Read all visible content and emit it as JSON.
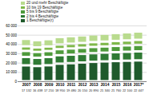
{
  "chart_data": {
    "type": "bar",
    "stacked": true,
    "categories": [
      "2007",
      "2008",
      "2009",
      "2010",
      "2011",
      "2012",
      "2013",
      "2014",
      "2015",
      "2016",
      "2017*"
    ],
    "series": [
      {
        "name": "1 Beschäftigte(r)",
        "color": "#1f5a2c",
        "values": [
          17132,
          16438,
          17210,
          18950,
          19480,
          20150,
          20890,
          21340,
          21760,
          22100,
          22447
        ],
        "value_labels": [
          "17 132",
          "16 438",
          "17 210",
          "18 950",
          "19 480",
          "20 150",
          "20 890",
          "21 340",
          "21 760",
          "22 100",
          "22 447"
        ]
      },
      {
        "name": "2 bis 4 Beschäftigte",
        "color": "#2f7a34",
        "values": [
          9000,
          8800,
          8900,
          9100,
          9200,
          9300,
          9300,
          9400,
          9500,
          9600,
          9700
        ]
      },
      {
        "name": "5 bis 9 Beschäftigte",
        "color": "#4f9b3c",
        "values": [
          6500,
          6300,
          6400,
          6500,
          6600,
          6600,
          6700,
          6700,
          6800,
          6900,
          7000
        ]
      },
      {
        "name": "10 bis 19 Beschäftigte",
        "color": "#7fb84a",
        "values": [
          5000,
          4900,
          4900,
          5000,
          5100,
          5100,
          5200,
          5200,
          5300,
          5300,
          5400
        ]
      },
      {
        "name": "20 und mehr Beschäftigte",
        "color": "#b9db8e",
        "values": [
          8000,
          7800,
          7900,
          8100,
          8200,
          8300,
          8400,
          8500,
          8600,
          8800,
          9000
        ]
      }
    ],
    "ylim": [
      0,
      60000
    ],
    "yticks": [
      0,
      {
        "value": 10000,
        "label": "10 000"
      },
      {
        "value": 20000,
        "label": "20 000"
      },
      {
        "value": 30000,
        "label": "30 000"
      },
      {
        "value": 40000,
        "label": "40 000"
      },
      {
        "value": 50000,
        "label": "50 000"
      },
      {
        "value": 60000,
        "label": "60 000"
      }
    ],
    "grid": true,
    "legend": "top-left",
    "data_labels": true
  }
}
